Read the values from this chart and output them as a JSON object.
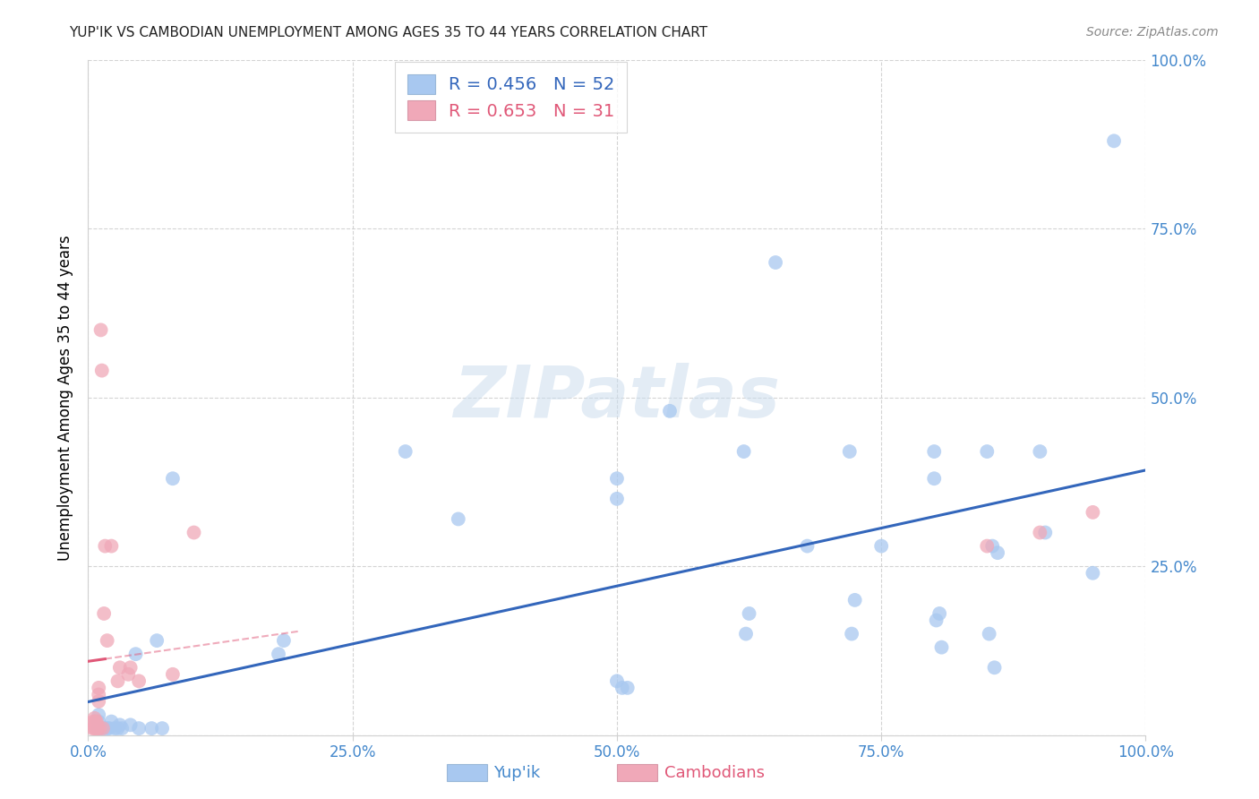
{
  "title": "YUP'IK VS CAMBODIAN UNEMPLOYMENT AMONG AGES 35 TO 44 YEARS CORRELATION CHART",
  "source": "Source: ZipAtlas.com",
  "ylabel": "Unemployment Among Ages 35 to 44 years",
  "xlim": [
    0,
    1.0
  ],
  "ylim": [
    0,
    1.0
  ],
  "xticks": [
    0.0,
    0.25,
    0.5,
    0.75,
    1.0
  ],
  "xtick_labels": [
    "0.0%",
    "25.0%",
    "50.0%",
    "75.0%",
    "100.0%"
  ],
  "yticks": [
    0.0,
    0.25,
    0.5,
    0.75,
    1.0
  ],
  "ytick_labels_right": [
    "",
    "25.0%",
    "50.0%",
    "75.0%",
    "100.0%"
  ],
  "background_color": "#ffffff",
  "grid_color": "#d0d0d0",
  "yupik_color": "#a8c8f0",
  "cambodian_color": "#f0a8b8",
  "yupik_line_color": "#3366bb",
  "cambodian_line_color": "#e05878",
  "tick_color": "#4488cc",
  "yupik_R": 0.456,
  "yupik_N": 52,
  "cambodian_R": 0.653,
  "cambodian_N": 31,
  "yupik_points_x": [
    0.01,
    0.01,
    0.01,
    0.012,
    0.015,
    0.018,
    0.02,
    0.022,
    0.025,
    0.028,
    0.03,
    0.032,
    0.04,
    0.045,
    0.048,
    0.06,
    0.065,
    0.07,
    0.08,
    0.18,
    0.185,
    0.3,
    0.35,
    0.5,
    0.5,
    0.5,
    0.505,
    0.51,
    0.55,
    0.62,
    0.622,
    0.625,
    0.65,
    0.68,
    0.72,
    0.722,
    0.725,
    0.75,
    0.8,
    0.8,
    0.802,
    0.805,
    0.807,
    0.85,
    0.852,
    0.855,
    0.857,
    0.86,
    0.9,
    0.905,
    0.95,
    0.97
  ],
  "yupik_points_y": [
    0.01,
    0.02,
    0.03,
    0.01,
    0.01,
    0.01,
    0.01,
    0.02,
    0.01,
    0.01,
    0.015,
    0.01,
    0.015,
    0.12,
    0.01,
    0.01,
    0.14,
    0.01,
    0.38,
    0.12,
    0.14,
    0.42,
    0.32,
    0.35,
    0.38,
    0.08,
    0.07,
    0.07,
    0.48,
    0.42,
    0.15,
    0.18,
    0.7,
    0.28,
    0.42,
    0.15,
    0.2,
    0.28,
    0.38,
    0.42,
    0.17,
    0.18,
    0.13,
    0.42,
    0.15,
    0.28,
    0.1,
    0.27,
    0.42,
    0.3,
    0.24,
    0.88
  ],
  "cambodian_points_x": [
    0.004,
    0.005,
    0.006,
    0.006,
    0.007,
    0.007,
    0.007,
    0.008,
    0.008,
    0.009,
    0.01,
    0.01,
    0.01,
    0.011,
    0.012,
    0.013,
    0.014,
    0.015,
    0.016,
    0.018,
    0.022,
    0.028,
    0.03,
    0.038,
    0.04,
    0.048,
    0.08,
    0.1,
    0.85,
    0.9,
    0.95
  ],
  "cambodian_points_y": [
    0.01,
    0.02,
    0.01,
    0.025,
    0.01,
    0.015,
    0.02,
    0.01,
    0.02,
    0.01,
    0.05,
    0.06,
    0.07,
    0.01,
    0.6,
    0.54,
    0.01,
    0.18,
    0.28,
    0.14,
    0.28,
    0.08,
    0.1,
    0.09,
    0.1,
    0.08,
    0.09,
    0.3,
    0.28,
    0.3,
    0.33
  ]
}
